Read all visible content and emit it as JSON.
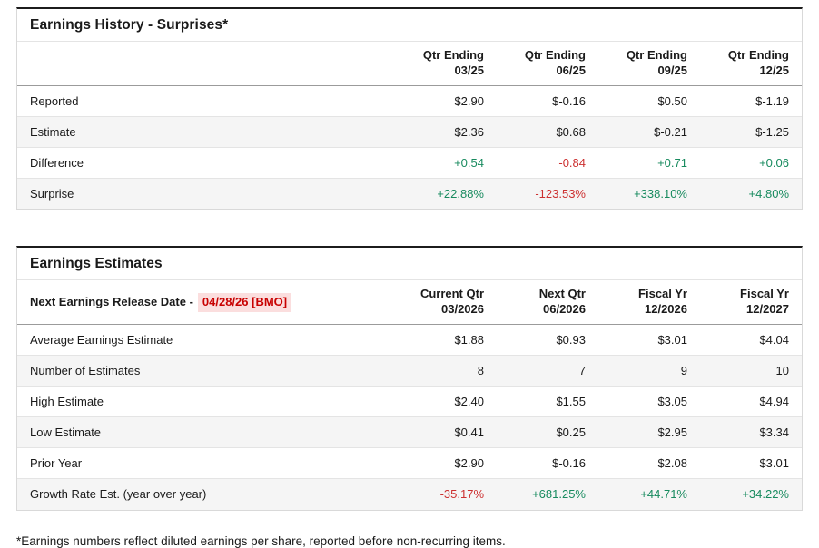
{
  "colors": {
    "positive": "#178a5e",
    "negative": "#cc3030",
    "release_date_text": "#c80000",
    "release_date_bg": "#fbdede"
  },
  "tables": [
    {
      "title": "Earnings History - Surprises*",
      "corner_label": "",
      "release_date": "",
      "columns": [
        {
          "line1": "Qtr Ending",
          "line2": "03/25"
        },
        {
          "line1": "Qtr Ending",
          "line2": "06/25"
        },
        {
          "line1": "Qtr Ending",
          "line2": "09/25"
        },
        {
          "line1": "Qtr Ending",
          "line2": "12/25"
        }
      ],
      "rows": [
        {
          "label": "Reported",
          "values": [
            "$2.90",
            "$-0.16",
            "$0.50",
            "$-1.19"
          ]
        },
        {
          "label": "Estimate",
          "values": [
            "$2.36",
            "$0.68",
            "$-0.21",
            "$-1.25"
          ]
        },
        {
          "label": "Difference",
          "values": [
            "+0.54",
            "-0.84",
            "+0.71",
            "+0.06"
          ]
        },
        {
          "label": "Surprise",
          "values": [
            "+22.88%",
            "-123.53%",
            "+338.10%",
            "+4.80%"
          ]
        }
      ]
    },
    {
      "title": "Earnings Estimates",
      "corner_label": "Next Earnings Release Date -",
      "release_date": "04/28/26 [BMO]",
      "columns": [
        {
          "line1": "Current Qtr",
          "line2": "03/2026"
        },
        {
          "line1": "Next Qtr",
          "line2": "06/2026"
        },
        {
          "line1": "Fiscal Yr",
          "line2": "12/2026"
        },
        {
          "line1": "Fiscal Yr",
          "line2": "12/2027"
        }
      ],
      "rows": [
        {
          "label": "Average Earnings Estimate",
          "values": [
            "$1.88",
            "$0.93",
            "$3.01",
            "$4.04"
          ]
        },
        {
          "label": "Number of Estimates",
          "values": [
            "8",
            "7",
            "9",
            "10"
          ]
        },
        {
          "label": "High Estimate",
          "values": [
            "$2.40",
            "$1.55",
            "$3.05",
            "$4.94"
          ]
        },
        {
          "label": "Low Estimate",
          "values": [
            "$0.41",
            "$0.25",
            "$2.95",
            "$3.34"
          ]
        },
        {
          "label": "Prior Year",
          "values": [
            "$2.90",
            "$-0.16",
            "$2.08",
            "$3.01"
          ]
        },
        {
          "label": "Growth Rate Est. (year over year)",
          "values": [
            "-35.17%",
            "+681.25%",
            "+44.71%",
            "+34.22%"
          ]
        }
      ]
    }
  ],
  "footnote": "*Earnings numbers reflect diluted earnings per share, reported before non-recurring items."
}
